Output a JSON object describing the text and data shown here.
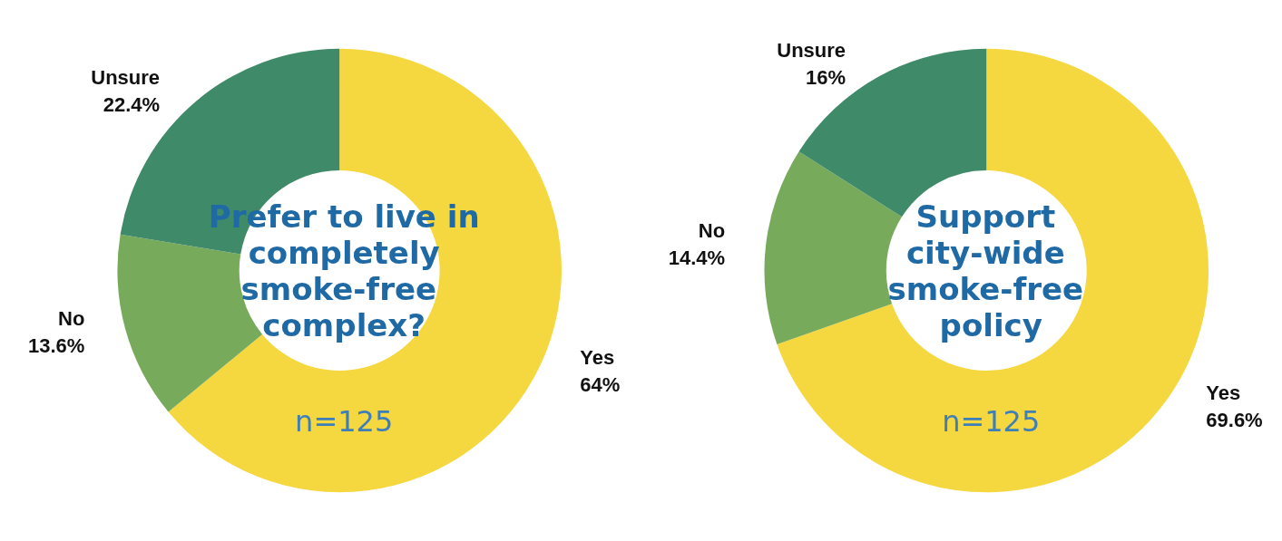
{
  "chart_data": [
    {
      "type": "donut",
      "title": "Prefer to live in completely smoke-free complex?",
      "subtitle": "n=125",
      "categories": [
        "Yes",
        "No",
        "Unsure"
      ],
      "values": [
        64,
        13.6,
        22.4
      ],
      "value_labels": [
        "64%",
        "13.6%",
        "22.4%"
      ],
      "colors": [
        "#f5d73f",
        "#78aa5c",
        "#3f8a69"
      ]
    },
    {
      "type": "donut",
      "title": "Support city-wide smoke-free policy",
      "subtitle": "n=125",
      "categories": [
        "Yes",
        "No",
        "Unsure"
      ],
      "values": [
        69.6,
        14.4,
        16
      ],
      "value_labels": [
        "69.6%",
        "14.4%",
        "16%"
      ],
      "colors": [
        "#f5d73f",
        "#78aa5c",
        "#3f8a69"
      ]
    }
  ]
}
